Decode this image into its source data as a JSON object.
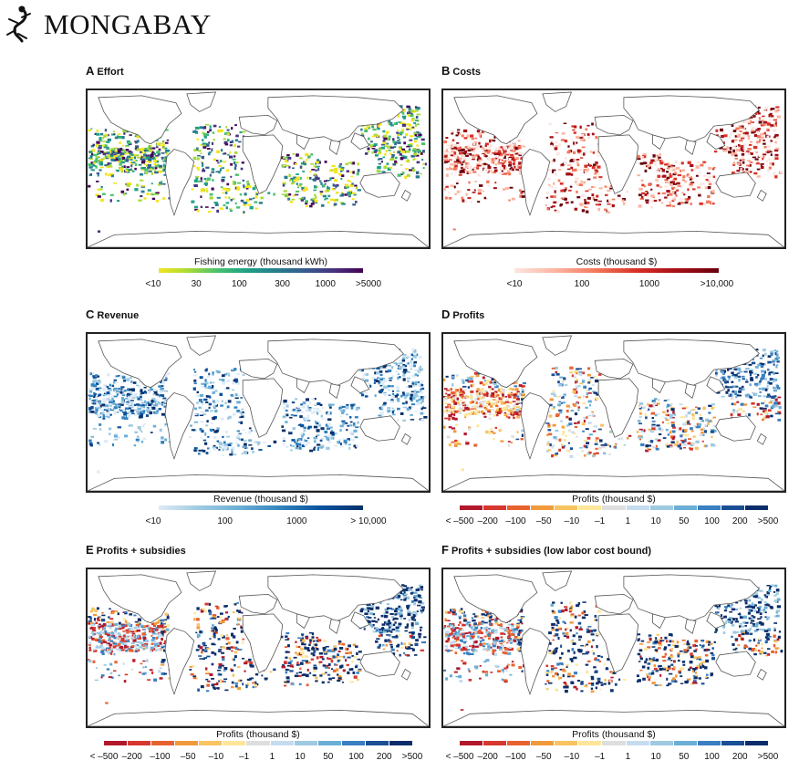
{
  "header": {
    "brand": "MONGABAY",
    "brand_icon": "gecko-icon"
  },
  "panels": [
    {
      "id": "A",
      "letter": "A",
      "title": "Effort",
      "legend_title": "Fishing energy (thousand kWh)",
      "colormap": "viridis",
      "ticks": [
        "<10",
        "30",
        "100",
        "300",
        "1000",
        ">5000"
      ]
    },
    {
      "id": "B",
      "letter": "B",
      "title": "Costs",
      "legend_title": "Costs (thousand $)",
      "colormap": "reds",
      "ticks": [
        "<10",
        "100",
        "1000",
        ">10,000"
      ]
    },
    {
      "id": "C",
      "letter": "C",
      "title": "Revenue",
      "legend_title": "Revenue (thousand $)",
      "colormap": "blues",
      "ticks": [
        "<10",
        "100",
        "1000",
        "> 10,000"
      ]
    },
    {
      "id": "D",
      "letter": "D",
      "title": "Profits",
      "legend_title": "Profits (thousand $)",
      "colormap": "diverging",
      "ticks": [
        "< –500",
        "–200",
        "–100",
        "–50",
        "–10",
        "–1",
        "1",
        "10",
        "50",
        "100",
        "200",
        ">500"
      ]
    },
    {
      "id": "E",
      "letter": "E",
      "title": "Profits + subsidies",
      "legend_title": "Profits (thousand $)",
      "colormap": "diverging",
      "ticks": [
        "< –500",
        "–200",
        "–100",
        "–50",
        "–10",
        "–1",
        "1",
        "10",
        "50",
        "100",
        "200",
        ">500"
      ]
    },
    {
      "id": "F",
      "letter": "F",
      "title": "Profits + subsidies (low labor cost bound)",
      "legend_title": "Profits (thousand $)",
      "colormap": "diverging",
      "ticks": [
        "< –500",
        "–200",
        "–100",
        "–50",
        "–10",
        "–1",
        "1",
        "10",
        "50",
        "100",
        "200",
        ">500"
      ]
    }
  ],
  "colors": {
    "viridis": [
      "#f3e51e",
      "#a8db34",
      "#4ac16d",
      "#1fa187",
      "#277f8e",
      "#365c8d",
      "#46327e",
      "#440154"
    ],
    "reds": [
      "#fde5e0",
      "#fbb4a0",
      "#f4775a",
      "#d73027",
      "#a50f15",
      "#67000d"
    ],
    "blues": [
      "#deebf7",
      "#9ecae1",
      "#6baed6",
      "#3182bd",
      "#08519c",
      "#08306b"
    ],
    "diverging": [
      "#b2182b",
      "#d6372e",
      "#e8622f",
      "#f19a3c",
      "#f8c360",
      "#fde69a",
      "#dedede",
      "#c6dbef",
      "#9ecae1",
      "#6baed6",
      "#3a7fc1",
      "#1a4f94",
      "#0b2e6b"
    ]
  }
}
